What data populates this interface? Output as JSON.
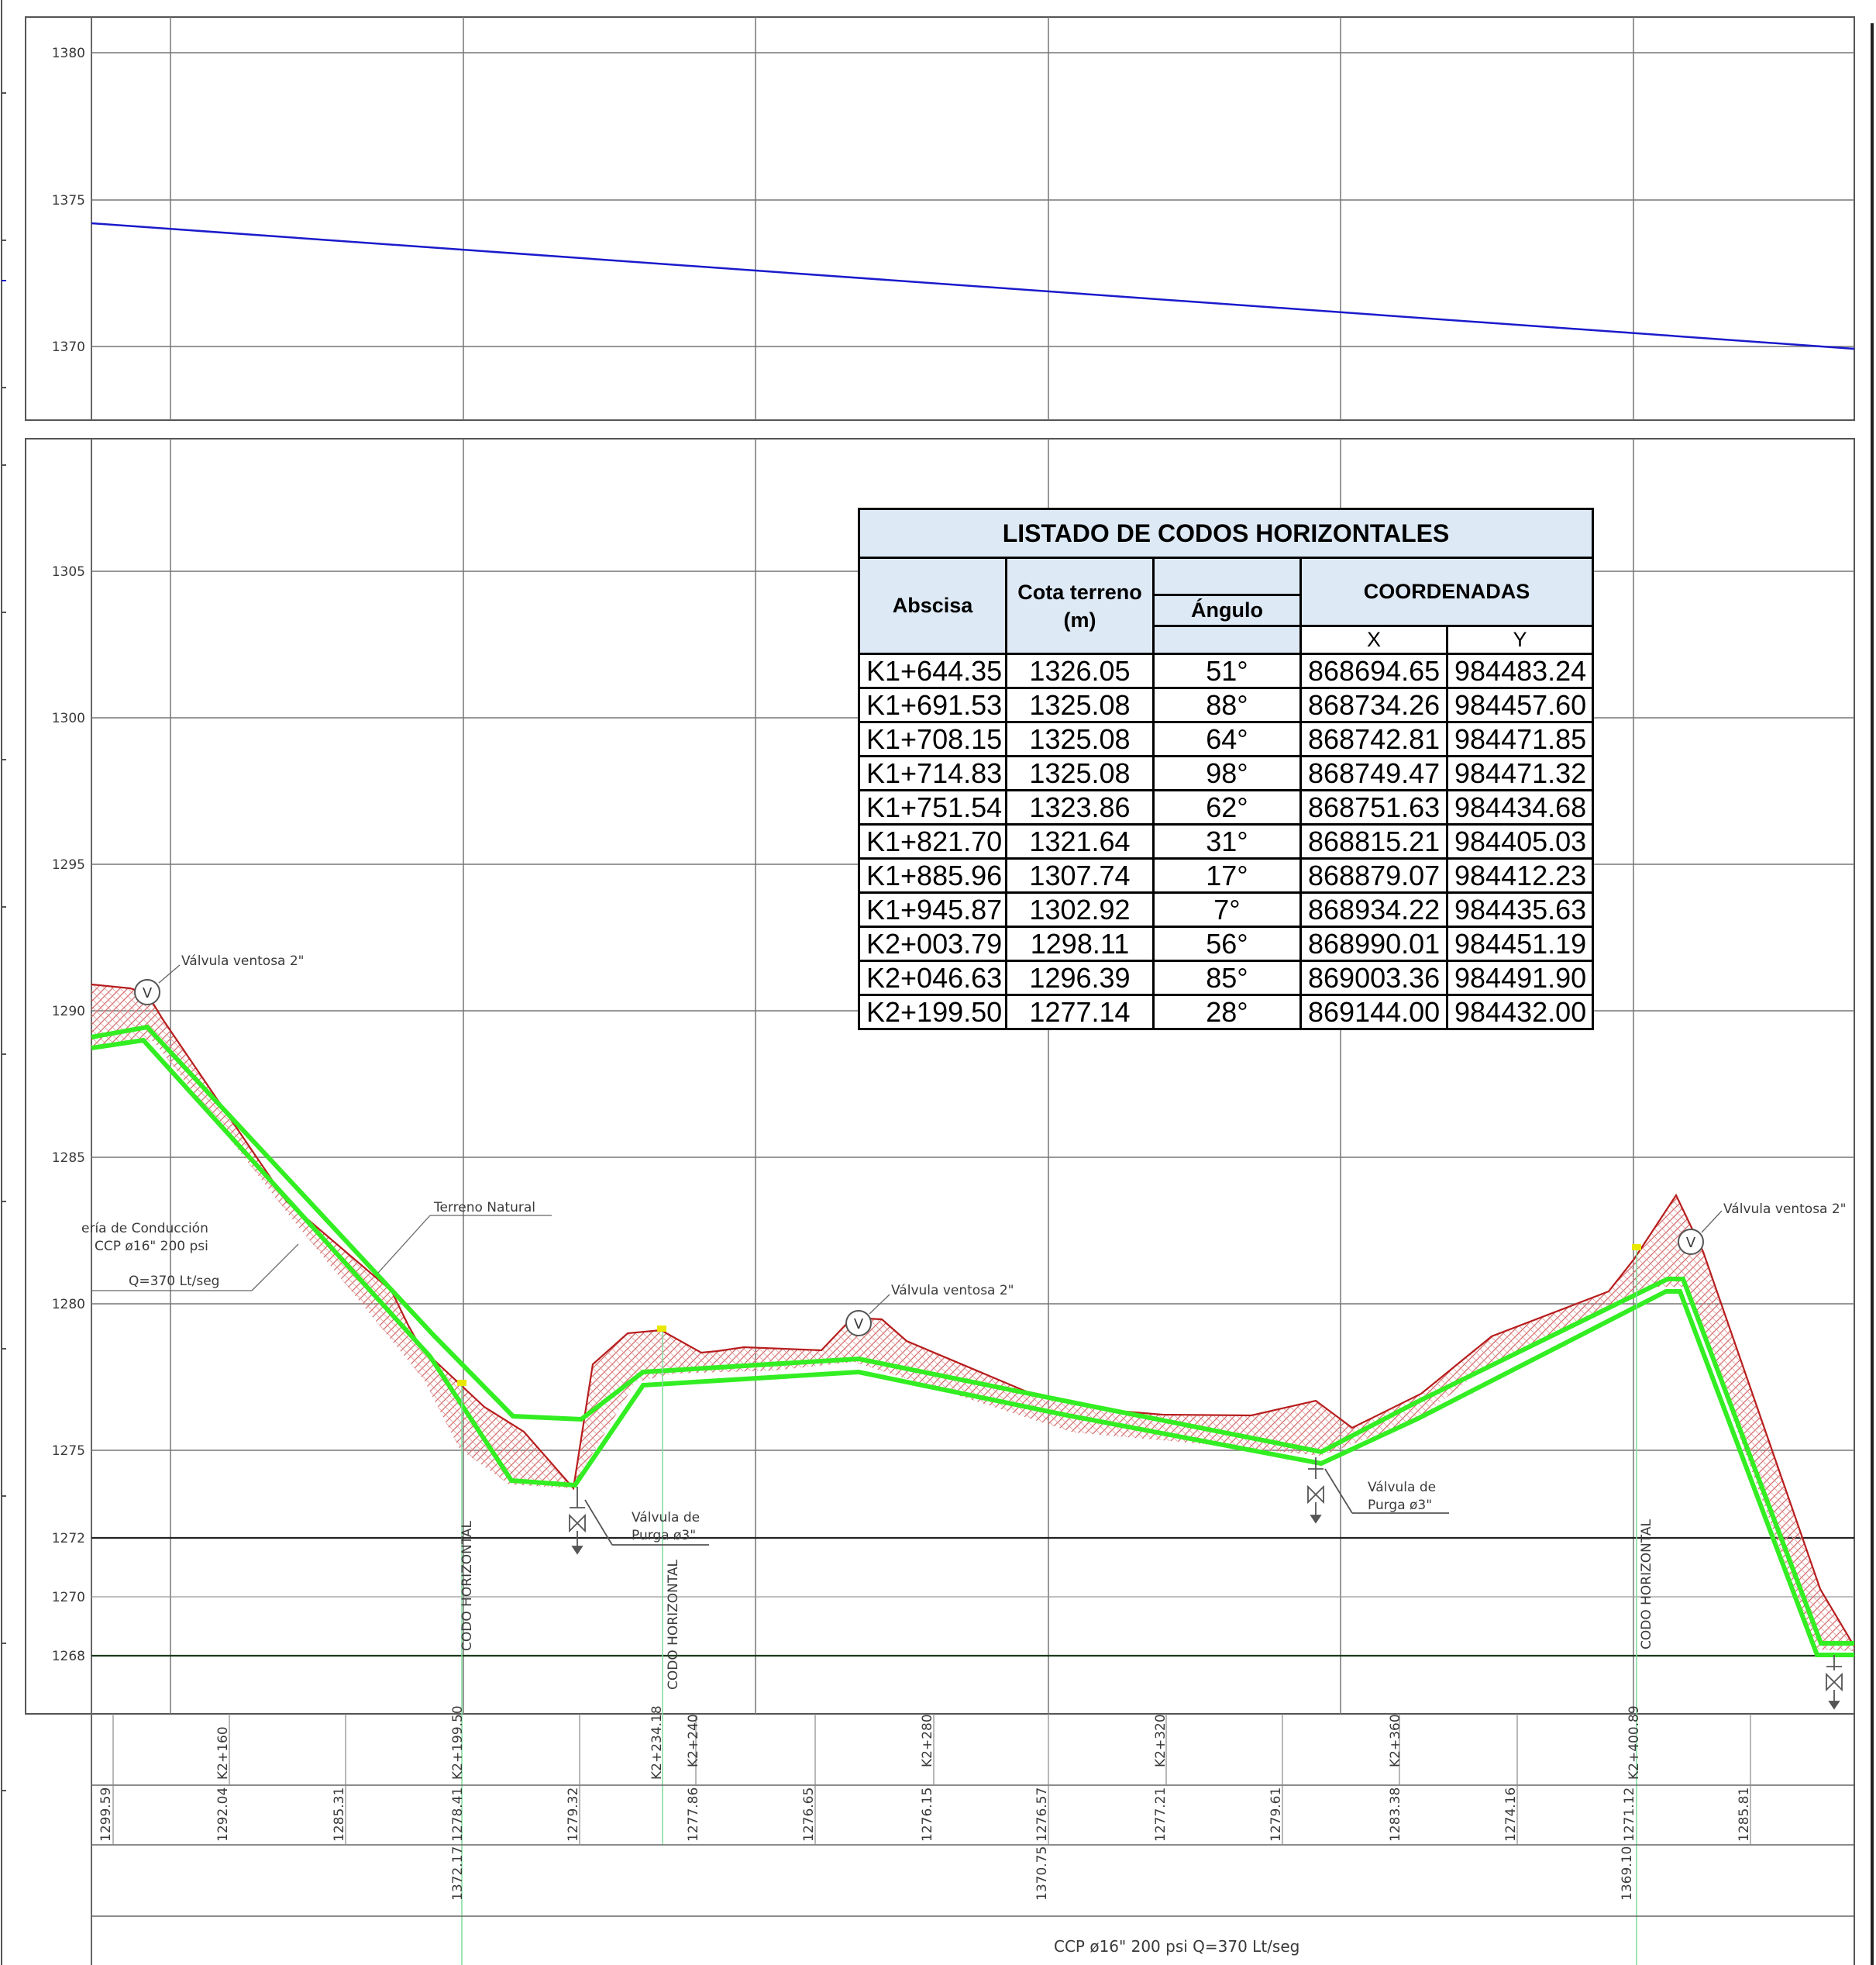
{
  "top_panel": {
    "y_ticks": [
      "1380",
      "1375",
      "1370"
    ]
  },
  "bottom_panel": {
    "y_ticks": [
      "1305",
      "1300",
      "1295",
      "1290",
      "1285",
      "1280",
      "1275",
      "1272",
      "1270",
      "1268"
    ]
  },
  "annotations": {
    "valve_air_1": "Válvula ventosa 2\"",
    "valve_air_2": "Válvula ventosa 2\"",
    "valve_air_3": "Válvula ventosa 2\"",
    "pipe_line1": "ería de Conducción",
    "pipe_line2": "CCP ø16\" 200 psi",
    "pipe_line3": "Q=370 Lt/seg",
    "terrain": "Terreno Natural",
    "purge1_line1": "Válvula de",
    "purge1_line2": "Purga ø3\"",
    "purge2_line1": "Válvula de",
    "purge2_line2": "Purga ø3\"",
    "codo_1": "CODO HORIZONTAL",
    "codo_2": "CODO HORIZONTAL",
    "codo_3": "CODO HORIZONTAL",
    "v_marker": "V"
  },
  "profile_band": {
    "stations": [
      "K2+160",
      "K2+199.50",
      "K2+234.18",
      "K2+240",
      "K2+280",
      "K2+320",
      "K2+360",
      "K2+400.89"
    ],
    "terrain_elevations": [
      "1299.59",
      "1292.04",
      "1285.31",
      "1278.41",
      "1279.32",
      "1277.86",
      "1276.65",
      "1276.15",
      "1276.57",
      "1277.21",
      "1279.61",
      "1283.38",
      "1274.16",
      "1271.12",
      "1285.81"
    ],
    "hydraulic_elevations": [
      "1372.17",
      "1370.75",
      "1369.10"
    ],
    "footer": "CCP ø16\" 200 psi Q=370 Lt/seg"
  },
  "table": {
    "title": "LISTADO DE CODOS HORIZONTALES",
    "headers": {
      "abscisa": "Abscisa",
      "cota": "Cota terreno (m)",
      "angulo": "Ángulo",
      "coordenadas": "COORDENADAS",
      "x": "X",
      "y": "Y"
    },
    "rows": [
      [
        "K1+644.35",
        "1326.05",
        "51°",
        "868694.65",
        "984483.24"
      ],
      [
        "K1+691.53",
        "1325.08",
        "88°",
        "868734.26",
        "984457.60"
      ],
      [
        "K1+708.15",
        "1325.08",
        "64°",
        "868742.81",
        "984471.85"
      ],
      [
        "K1+714.83",
        "1325.08",
        "98°",
        "868749.47",
        "984471.32"
      ],
      [
        "K1+751.54",
        "1323.86",
        "62°",
        "868751.63",
        "984434.68"
      ],
      [
        "K1+821.70",
        "1321.64",
        "31°",
        "868815.21",
        "984405.03"
      ],
      [
        "K1+885.96",
        "1307.74",
        "17°",
        "868879.07",
        "984412.23"
      ],
      [
        "K1+945.87",
        "1302.92",
        "7°",
        "868934.22",
        "984435.63"
      ],
      [
        "K2+003.79",
        "1298.11",
        "56°",
        "868990.01",
        "984451.19"
      ],
      [
        "K2+046.63",
        "1296.39",
        "85°",
        "869003.36",
        "984491.90"
      ],
      [
        "K2+199.50",
        "1277.14",
        "28°",
        "869144.00",
        "984432.00"
      ]
    ]
  },
  "colors": {
    "pipe": "#33ee22",
    "terrain": "#b81d1d",
    "hydraulic_line": "#1a1acc",
    "grid": "#6e6e6e"
  }
}
